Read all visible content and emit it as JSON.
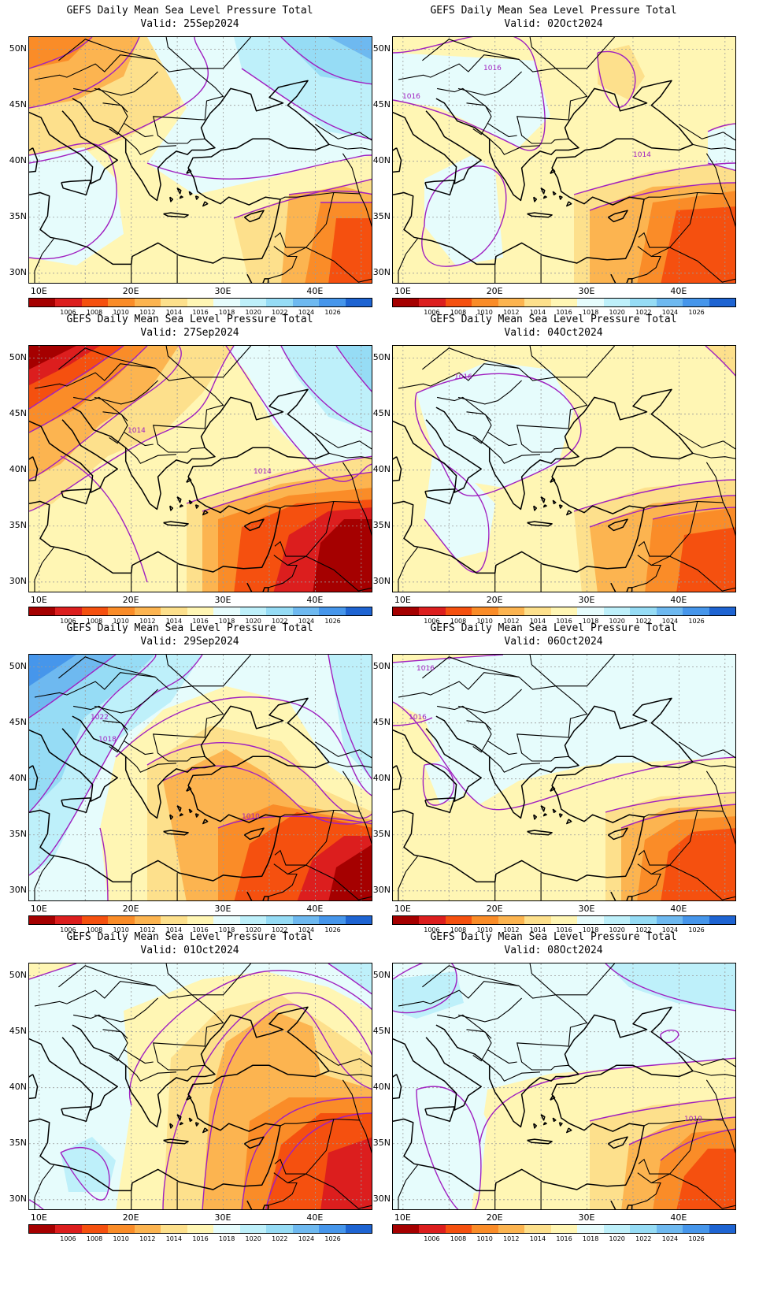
{
  "panels": [
    {
      "title": "GEFS Daily Mean Sea Level Pressure Total",
      "valid": "Valid: 25Sep2024",
      "contour_labels": []
    },
    {
      "title": "GEFS Daily Mean Sea Level Pressure Total",
      "valid": "Valid: 02Oct2024",
      "contour_labels": [
        "1016",
        "1016",
        "1014"
      ]
    },
    {
      "title": "GEFS Daily Mean Sea Level Pressure Total",
      "valid": "Valid: 27Sep2024",
      "contour_labels": [
        "1014",
        "1014"
      ]
    },
    {
      "title": "GEFS Daily Mean Sea Level Pressure Total",
      "valid": "Valid: 04Oct2024",
      "contour_labels": [
        "1016"
      ]
    },
    {
      "title": "GEFS Daily Mean Sea Level Pressure Total",
      "valid": "Valid: 29Sep2024",
      "contour_labels": [
        "1022",
        "1018",
        "1010"
      ]
    },
    {
      "title": "GEFS Daily Mean Sea Level Pressure Total",
      "valid": "Valid: 06Oct2024",
      "contour_labels": [
        "1016",
        "1016"
      ]
    },
    {
      "title": "GEFS Daily Mean Sea Level Pressure Total",
      "valid": "Valid: 01Oct2024",
      "contour_labels": []
    },
    {
      "title": "GEFS Daily Mean Sea Level Pressure Total",
      "valid": "Valid: 08Oct2024",
      "contour_labels": [
        "1010"
      ]
    }
  ],
  "axes": {
    "lat_labels": [
      "50N",
      "45N",
      "40N",
      "35N",
      "30N"
    ],
    "lon_labels": [
      "10E",
      "20E",
      "30E",
      "40E"
    ]
  },
  "colorbar": {
    "labels": [
      "1006",
      "1008",
      "1010",
      "1012",
      "1014",
      "1016",
      "1018",
      "1020",
      "1022",
      "1024",
      "1026"
    ],
    "colors": [
      "#a50000",
      "#dc1e1e",
      "#f5500f",
      "#fa8c28",
      "#fcb450",
      "#fde08c",
      "#fff6b4",
      "#e6fcfc",
      "#bef0fa",
      "#96dcf5",
      "#6eb9f0",
      "#4696eb",
      "#1e64d2"
    ]
  },
  "style": {
    "contour_color": "#a020c0",
    "coast_color": "#000000",
    "grid_color": "#9a9a9a"
  }
}
